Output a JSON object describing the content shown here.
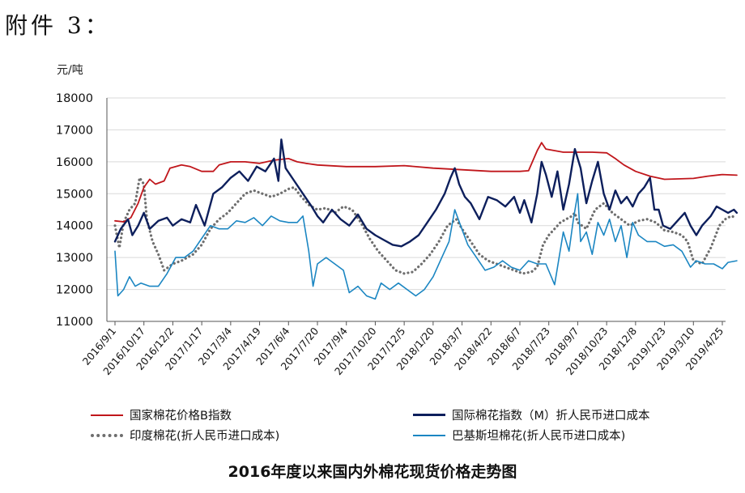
{
  "header": {
    "attachment_label": "附件 3："
  },
  "caption": "2016年度以来国内外棉花现货价格走势图",
  "colors": {
    "china_index": "#C0161B",
    "intl_index": "#0D1F5C",
    "india": "#6E6E6E",
    "pakistan": "#1B86C2",
    "grid": "#D9D9D9",
    "axis": "#555555"
  },
  "chart_data": {
    "type": "line",
    "ylabel": "元/吨",
    "ylim": [
      11000,
      18000
    ],
    "yticks": [
      11000,
      12000,
      13000,
      14000,
      15000,
      16000,
      17000,
      18000
    ],
    "xticks": [
      "2016/9/1",
      "2016/10/17",
      "2016/12/2",
      "2017/1/17",
      "2017/3/4",
      "2017/4/19",
      "2017/6/4",
      "2017/7/20",
      "2017/9/4",
      "2017/10/20",
      "2017/12/5",
      "2018/1/20",
      "2018/3/7",
      "2018/4/22",
      "2018/6/7",
      "2018/7/23",
      "2018/9/7",
      "2018/10/23",
      "2018/12/8",
      "2019/1/23",
      "2019/3/10",
      "2019/4/25"
    ],
    "grid": "horizontal",
    "legend_position": "bottom",
    "series": [
      {
        "name": "国家棉花价格B指数",
        "style": "solid",
        "points": [
          [
            0,
            14150
          ],
          [
            0.3,
            14120
          ],
          [
            0.55,
            14250
          ],
          [
            0.8,
            14700
          ],
          [
            1.0,
            15200
          ],
          [
            1.2,
            15450
          ],
          [
            1.4,
            15300
          ],
          [
            1.7,
            15400
          ],
          [
            1.9,
            15800
          ],
          [
            2.3,
            15900
          ],
          [
            2.6,
            15850
          ],
          [
            3.0,
            15700
          ],
          [
            3.4,
            15700
          ],
          [
            3.6,
            15900
          ],
          [
            4.0,
            16000
          ],
          [
            4.5,
            16000
          ],
          [
            5.0,
            15950
          ],
          [
            5.5,
            16050
          ],
          [
            6.0,
            16100
          ],
          [
            6.3,
            16000
          ],
          [
            6.6,
            15950
          ],
          [
            7.0,
            15900
          ],
          [
            8.0,
            15850
          ],
          [
            9.0,
            15850
          ],
          [
            10.0,
            15880
          ],
          [
            11.0,
            15800
          ],
          [
            12.0,
            15750
          ],
          [
            13.0,
            15700
          ],
          [
            14.0,
            15700
          ],
          [
            14.3,
            15720
          ],
          [
            14.6,
            16350
          ],
          [
            14.75,
            16600
          ],
          [
            14.9,
            16400
          ],
          [
            15.5,
            16300
          ],
          [
            16.5,
            16300
          ],
          [
            17.0,
            16280
          ],
          [
            17.3,
            16100
          ],
          [
            17.6,
            15900
          ],
          [
            18.0,
            15700
          ],
          [
            18.5,
            15550
          ],
          [
            19.0,
            15450
          ],
          [
            20.0,
            15480
          ],
          [
            20.5,
            15550
          ],
          [
            21.0,
            15600
          ],
          [
            21.5,
            15580
          ]
        ]
      },
      {
        "name": "国际棉花指数（M）折人民币进口成本",
        "style": "solid",
        "points": [
          [
            0,
            13500
          ],
          [
            0.2,
            13900
          ],
          [
            0.45,
            14200
          ],
          [
            0.6,
            13700
          ],
          [
            0.8,
            14000
          ],
          [
            1.0,
            14400
          ],
          [
            1.2,
            13900
          ],
          [
            1.5,
            14150
          ],
          [
            1.8,
            14250
          ],
          [
            2.0,
            14000
          ],
          [
            2.3,
            14200
          ],
          [
            2.6,
            14100
          ],
          [
            2.8,
            14650
          ],
          [
            3.1,
            14000
          ],
          [
            3.4,
            15000
          ],
          [
            3.7,
            15200
          ],
          [
            4.0,
            15500
          ],
          [
            4.3,
            15700
          ],
          [
            4.6,
            15400
          ],
          [
            4.9,
            15850
          ],
          [
            5.2,
            15700
          ],
          [
            5.5,
            16100
          ],
          [
            5.65,
            15400
          ],
          [
            5.75,
            16700
          ],
          [
            5.9,
            15800
          ],
          [
            6.2,
            15400
          ],
          [
            6.5,
            15000
          ],
          [
            6.8,
            14600
          ],
          [
            7.0,
            14300
          ],
          [
            7.2,
            14100
          ],
          [
            7.5,
            14500
          ],
          [
            7.8,
            14200
          ],
          [
            8.1,
            14000
          ],
          [
            8.4,
            14350
          ],
          [
            8.7,
            13900
          ],
          [
            9.0,
            13700
          ],
          [
            9.3,
            13550
          ],
          [
            9.6,
            13400
          ],
          [
            9.9,
            13350
          ],
          [
            10.2,
            13500
          ],
          [
            10.5,
            13700
          ],
          [
            10.8,
            14100
          ],
          [
            11.1,
            14500
          ],
          [
            11.4,
            15000
          ],
          [
            11.6,
            15500
          ],
          [
            11.75,
            15800
          ],
          [
            11.9,
            15300
          ],
          [
            12.1,
            14900
          ],
          [
            12.3,
            14700
          ],
          [
            12.6,
            14200
          ],
          [
            12.9,
            14900
          ],
          [
            13.2,
            14800
          ],
          [
            13.5,
            14600
          ],
          [
            13.8,
            14900
          ],
          [
            14.0,
            14400
          ],
          [
            14.15,
            14800
          ],
          [
            14.4,
            14100
          ],
          [
            14.6,
            15000
          ],
          [
            14.75,
            16000
          ],
          [
            14.9,
            15600
          ],
          [
            15.1,
            14900
          ],
          [
            15.3,
            15700
          ],
          [
            15.5,
            14500
          ],
          [
            15.7,
            15300
          ],
          [
            15.9,
            16400
          ],
          [
            16.1,
            15800
          ],
          [
            16.3,
            14700
          ],
          [
            16.5,
            15400
          ],
          [
            16.7,
            16000
          ],
          [
            16.9,
            15000
          ],
          [
            17.1,
            14500
          ],
          [
            17.3,
            15100
          ],
          [
            17.5,
            14700
          ],
          [
            17.7,
            14900
          ],
          [
            17.9,
            14600
          ],
          [
            18.1,
            15000
          ],
          [
            18.3,
            15200
          ],
          [
            18.5,
            15500
          ],
          [
            18.65,
            14500
          ],
          [
            18.8,
            14500
          ],
          [
            18.95,
            14000
          ],
          [
            19.2,
            13900
          ],
          [
            19.5,
            14200
          ],
          [
            19.7,
            14400
          ],
          [
            19.9,
            14000
          ],
          [
            20.1,
            13700
          ],
          [
            20.3,
            14000
          ],
          [
            20.6,
            14300
          ],
          [
            20.8,
            14600
          ],
          [
            21.0,
            14500
          ],
          [
            21.2,
            14400
          ],
          [
            21.4,
            14500
          ],
          [
            21.5,
            14400
          ]
        ]
      },
      {
        "name": "印度棉花(折人民币进口成本)",
        "style": "dotted",
        "points": [
          [
            0,
            14000
          ],
          [
            0.15,
            13300
          ],
          [
            0.3,
            14100
          ],
          [
            0.5,
            14500
          ],
          [
            0.7,
            14700
          ],
          [
            0.85,
            15500
          ],
          [
            1.0,
            15300
          ],
          [
            1.1,
            14200
          ],
          [
            1.3,
            13500
          ],
          [
            1.5,
            13100
          ],
          [
            1.7,
            12600
          ],
          [
            2.0,
            12800
          ],
          [
            2.3,
            12900
          ],
          [
            2.7,
            13100
          ],
          [
            3.0,
            13400
          ],
          [
            3.3,
            13900
          ],
          [
            3.6,
            14200
          ],
          [
            3.9,
            14400
          ],
          [
            4.2,
            14700
          ],
          [
            4.5,
            15000
          ],
          [
            4.8,
            15100
          ],
          [
            5.1,
            15000
          ],
          [
            5.4,
            14900
          ],
          [
            5.7,
            15000
          ],
          [
            6.0,
            15150
          ],
          [
            6.2,
            15200
          ],
          [
            6.4,
            14950
          ],
          [
            6.7,
            14650
          ],
          [
            7.0,
            14500
          ],
          [
            7.3,
            14550
          ],
          [
            7.6,
            14400
          ],
          [
            7.9,
            14600
          ],
          [
            8.2,
            14500
          ],
          [
            8.5,
            14100
          ],
          [
            8.8,
            13600
          ],
          [
            9.1,
            13200
          ],
          [
            9.4,
            12900
          ],
          [
            9.7,
            12600
          ],
          [
            10.0,
            12500
          ],
          [
            10.3,
            12550
          ],
          [
            10.6,
            12800
          ],
          [
            10.9,
            13100
          ],
          [
            11.2,
            13500
          ],
          [
            11.5,
            14000
          ],
          [
            11.8,
            14200
          ],
          [
            12.0,
            13900
          ],
          [
            12.3,
            13500
          ],
          [
            12.6,
            13100
          ],
          [
            12.9,
            12900
          ],
          [
            13.2,
            12800
          ],
          [
            13.5,
            12700
          ],
          [
            13.8,
            12600
          ],
          [
            14.1,
            12500
          ],
          [
            14.4,
            12550
          ],
          [
            14.6,
            12700
          ],
          [
            14.8,
            13400
          ],
          [
            15.0,
            13700
          ],
          [
            15.2,
            13900
          ],
          [
            15.4,
            14100
          ],
          [
            15.6,
            14200
          ],
          [
            15.8,
            14300
          ],
          [
            15.9,
            14400
          ],
          [
            16.0,
            14100
          ],
          [
            16.3,
            13900
          ],
          [
            16.6,
            14500
          ],
          [
            16.9,
            14700
          ],
          [
            17.2,
            14400
          ],
          [
            17.5,
            14200
          ],
          [
            17.8,
            14000
          ],
          [
            18.1,
            14150
          ],
          [
            18.4,
            14200
          ],
          [
            18.7,
            14100
          ],
          [
            19.0,
            13850
          ],
          [
            19.3,
            13800
          ],
          [
            19.6,
            13700
          ],
          [
            19.8,
            13500
          ],
          [
            20.0,
            12900
          ],
          [
            20.3,
            12800
          ],
          [
            20.6,
            13300
          ],
          [
            20.9,
            14000
          ],
          [
            21.1,
            14200
          ],
          [
            21.3,
            14300
          ],
          [
            21.5,
            14250
          ]
        ]
      },
      {
        "name": "巴基斯坦棉花(折人民币进口成本)",
        "style": "solid",
        "points": [
          [
            0,
            13200
          ],
          [
            0.1,
            11800
          ],
          [
            0.3,
            12000
          ],
          [
            0.5,
            12400
          ],
          [
            0.7,
            12100
          ],
          [
            0.9,
            12200
          ],
          [
            1.2,
            12100
          ],
          [
            1.5,
            12100
          ],
          [
            1.8,
            12500
          ],
          [
            2.1,
            13000
          ],
          [
            2.4,
            13000
          ],
          [
            2.7,
            13200
          ],
          [
            3.0,
            13600
          ],
          [
            3.3,
            14000
          ],
          [
            3.6,
            13900
          ],
          [
            3.9,
            13900
          ],
          [
            4.2,
            14150
          ],
          [
            4.5,
            14100
          ],
          [
            4.8,
            14250
          ],
          [
            5.1,
            14000
          ],
          [
            5.4,
            14300
          ],
          [
            5.7,
            14150
          ],
          [
            6.0,
            14100
          ],
          [
            6.3,
            14100
          ],
          [
            6.5,
            14300
          ],
          [
            6.7,
            13200
          ],
          [
            6.85,
            12100
          ],
          [
            7.0,
            12800
          ],
          [
            7.3,
            13000
          ],
          [
            7.6,
            12800
          ],
          [
            7.9,
            12600
          ],
          [
            8.1,
            11900
          ],
          [
            8.4,
            12100
          ],
          [
            8.7,
            11800
          ],
          [
            9.0,
            11700
          ],
          [
            9.2,
            12200
          ],
          [
            9.5,
            12000
          ],
          [
            9.8,
            12200
          ],
          [
            10.1,
            12000
          ],
          [
            10.4,
            11800
          ],
          [
            10.7,
            12000
          ],
          [
            11.0,
            12400
          ],
          [
            11.3,
            13000
          ],
          [
            11.55,
            13500
          ],
          [
            11.75,
            14500
          ],
          [
            11.95,
            14000
          ],
          [
            12.2,
            13400
          ],
          [
            12.5,
            13000
          ],
          [
            12.8,
            12600
          ],
          [
            13.1,
            12700
          ],
          [
            13.4,
            12900
          ],
          [
            13.7,
            12700
          ],
          [
            14.0,
            12600
          ],
          [
            14.3,
            12900
          ],
          [
            14.6,
            12800
          ],
          [
            14.9,
            12800
          ],
          [
            15.2,
            12150
          ],
          [
            15.5,
            13800
          ],
          [
            15.7,
            13200
          ],
          [
            15.85,
            14200
          ],
          [
            16.0,
            15000
          ],
          [
            16.1,
            13500
          ],
          [
            16.3,
            13800
          ],
          [
            16.5,
            13100
          ],
          [
            16.7,
            14100
          ],
          [
            16.9,
            13700
          ],
          [
            17.1,
            14200
          ],
          [
            17.3,
            13500
          ],
          [
            17.5,
            14000
          ],
          [
            17.7,
            13000
          ],
          [
            17.9,
            14100
          ],
          [
            18.1,
            13700
          ],
          [
            18.4,
            13500
          ],
          [
            18.7,
            13500
          ],
          [
            19.0,
            13350
          ],
          [
            19.3,
            13400
          ],
          [
            19.6,
            13200
          ],
          [
            19.9,
            12700
          ],
          [
            20.1,
            12900
          ],
          [
            20.4,
            12800
          ],
          [
            20.7,
            12800
          ],
          [
            21.0,
            12650
          ],
          [
            21.2,
            12850
          ],
          [
            21.5,
            12900
          ]
        ]
      }
    ]
  }
}
